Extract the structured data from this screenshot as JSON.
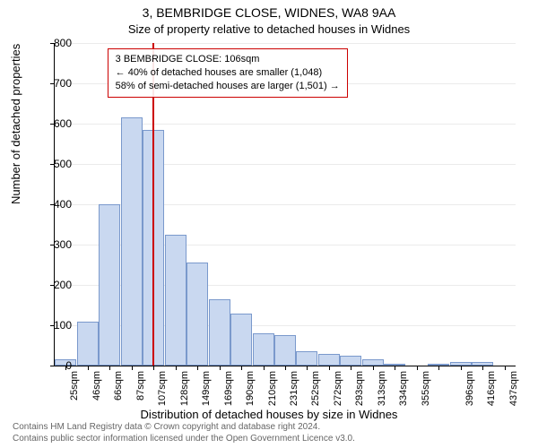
{
  "title": "3, BEMBRIDGE CLOSE, WIDNES, WA8 9AA",
  "subtitle": "Size of property relative to detached houses in Widnes",
  "ylabel": "Number of detached properties",
  "xlabel": "Distribution of detached houses by size in Widnes",
  "footer_line1": "Contains HM Land Registry data © Crown copyright and database right 2024.",
  "footer_line2": "Contains public sector information licensed under the Open Government Licence v3.0.",
  "chart": {
    "type": "histogram",
    "ylim": [
      0,
      800
    ],
    "ytick_step": 100,
    "bar_fill": "#c9d8f0",
    "bar_stroke": "#7a99cc",
    "background": "#ffffff",
    "marker_color": "#cc0000",
    "marker_x": 106,
    "x_start": 15,
    "x_bin_width": 20.5,
    "n_bins": 21,
    "values": [
      15,
      110,
      400,
      615,
      585,
      325,
      255,
      165,
      130,
      80,
      75,
      35,
      30,
      25,
      15,
      5,
      0,
      5,
      10,
      10,
      0
    ],
    "xtick_labels": [
      "25sqm",
      "46sqm",
      "66sqm",
      "87sqm",
      "107sqm",
      "128sqm",
      "149sqm",
      "169sqm",
      "190sqm",
      "210sqm",
      "231sqm",
      "252sqm",
      "272sqm",
      "293sqm",
      "313sqm",
      "334sqm",
      "355sqm",
      "",
      "396sqm",
      "416sqm",
      "437sqm"
    ]
  },
  "annotation": {
    "border_color": "#cc0000",
    "line1": "3 BEMBRIDGE CLOSE: 106sqm",
    "line2": "← 40% of detached houses are smaller (1,048)",
    "line3": "58% of semi-detached houses are larger (1,501) →"
  }
}
